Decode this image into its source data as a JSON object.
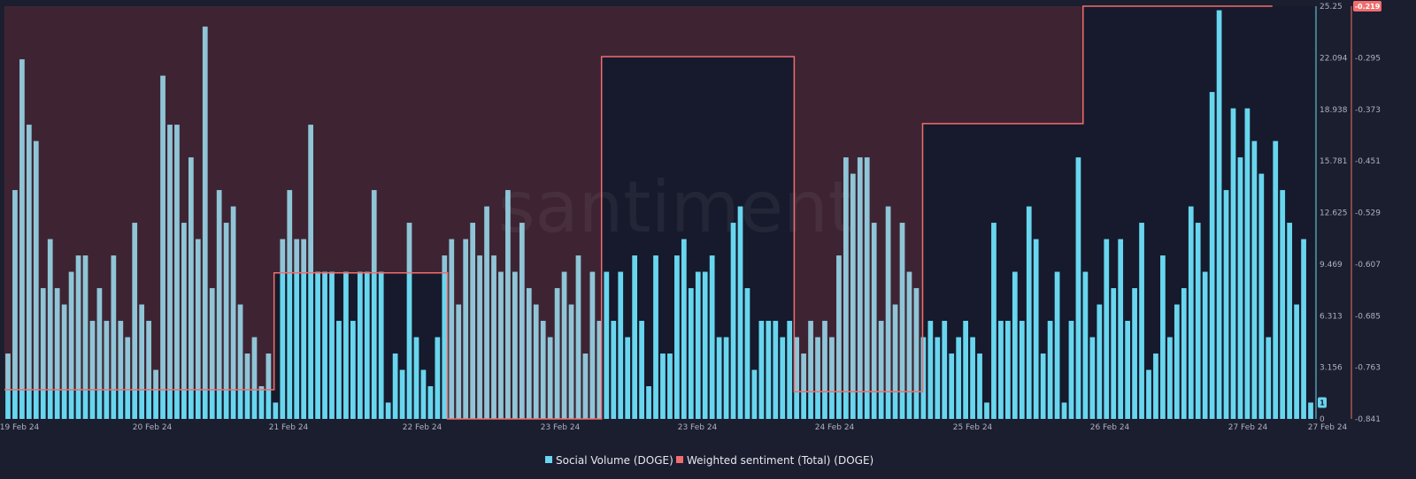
{
  "watermark": "santiment",
  "colors": {
    "background": "#1b1e2f",
    "plot_background": "#161a2c",
    "negative_shade": "#3e2433",
    "social_volume": "#68d6ee",
    "social_volume_on_shade": "#8fc5d6",
    "sentiment": "#f26d6d"
  },
  "chart_data": {
    "type": "bar+line",
    "x_tick_labels": [
      "19 Feb 24",
      "20 Feb 24",
      "21 Feb 24",
      "22 Feb 24",
      "23 Feb 24",
      "23 Feb 24",
      "24 Feb 24",
      "25 Feb 24",
      "26 Feb 24",
      "27 Feb 24",
      "27 Feb 24"
    ],
    "y_left": {
      "ticks": [
        "25.25",
        "22.094",
        "18.938",
        "15.781",
        "12.625",
        "9.469",
        "6.313",
        "3.156",
        "0"
      ],
      "range": [
        0,
        25.25
      ]
    },
    "y_right": {
      "ticks": [
        "-0.219",
        "-0.295",
        "-0.373",
        "-0.451",
        "-0.529",
        "-0.607",
        "-0.685",
        "-0.763",
        "-0.841"
      ],
      "range": [
        -0.841,
        -0.219
      ],
      "current_value_badge": "-0.219"
    },
    "left_current_value_badge": "1",
    "series": [
      {
        "name": "Social Volume (DOGE)",
        "type": "bar",
        "values": [
          4,
          14,
          22,
          18,
          17,
          8,
          11,
          8,
          7,
          9,
          10,
          10,
          6,
          8,
          6,
          10,
          6,
          5,
          12,
          7,
          6,
          3,
          21,
          18,
          18,
          12,
          16,
          11,
          24,
          8,
          14,
          12,
          13,
          7,
          4,
          5,
          2,
          4,
          1,
          11,
          14,
          11,
          11,
          18,
          9,
          9,
          9,
          6,
          9,
          6,
          9,
          9,
          14,
          9,
          1,
          4,
          3,
          12,
          5,
          3,
          2,
          5,
          10,
          11,
          7,
          11,
          12,
          10,
          13,
          10,
          9,
          14,
          9,
          12,
          8,
          7,
          6,
          5,
          8,
          9,
          7,
          10,
          4,
          9,
          6,
          9,
          6,
          9,
          5,
          10,
          6,
          2,
          10,
          4,
          4,
          10,
          11,
          8,
          9,
          9,
          10,
          5,
          5,
          12,
          13,
          8,
          3,
          6,
          6,
          6,
          5,
          6,
          5,
          4,
          6,
          5,
          6,
          5,
          10,
          16,
          15,
          16,
          16,
          12,
          6,
          13,
          7,
          12,
          9,
          8,
          5,
          6,
          5,
          6,
          4,
          5,
          6,
          5,
          4,
          1,
          12,
          6,
          6,
          9,
          6,
          13,
          11,
          4,
          6,
          9,
          1,
          6,
          16,
          9,
          5,
          7,
          11,
          8,
          11,
          6,
          8,
          12,
          3,
          4,
          10,
          5,
          7,
          8,
          13,
          12,
          9,
          20,
          25,
          14,
          19,
          16,
          19,
          17,
          15,
          5,
          17,
          14,
          12,
          7,
          11,
          1
        ],
        "value_labels_visible": false
      },
      {
        "name": "Weighted sentiment (Total) (DOGE)",
        "type": "line",
        "steps": [
          {
            "from": "19 Feb 24",
            "value": -0.797
          },
          {
            "from": "20 Feb 24 18:00",
            "value": -0.621
          },
          {
            "from": "21 Feb 24 21:00",
            "value": -0.841
          },
          {
            "from": "22 Feb 24 21:00",
            "value": -0.295
          },
          {
            "from": "24 Feb 24 03:00",
            "value": -0.8
          },
          {
            "from": "24 Feb 24 23:00",
            "value": -0.396
          },
          {
            "from": "26 Feb 24 00:00",
            "value": -0.219
          }
        ]
      }
    ],
    "grid": false,
    "legend_position": "bottom-center"
  },
  "legend": {
    "items": [
      {
        "label": "Social Volume (DOGE)",
        "color": "#68d6ee"
      },
      {
        "label": "Weighted sentiment (Total) (DOGE)",
        "color": "#f26d6d"
      }
    ]
  }
}
